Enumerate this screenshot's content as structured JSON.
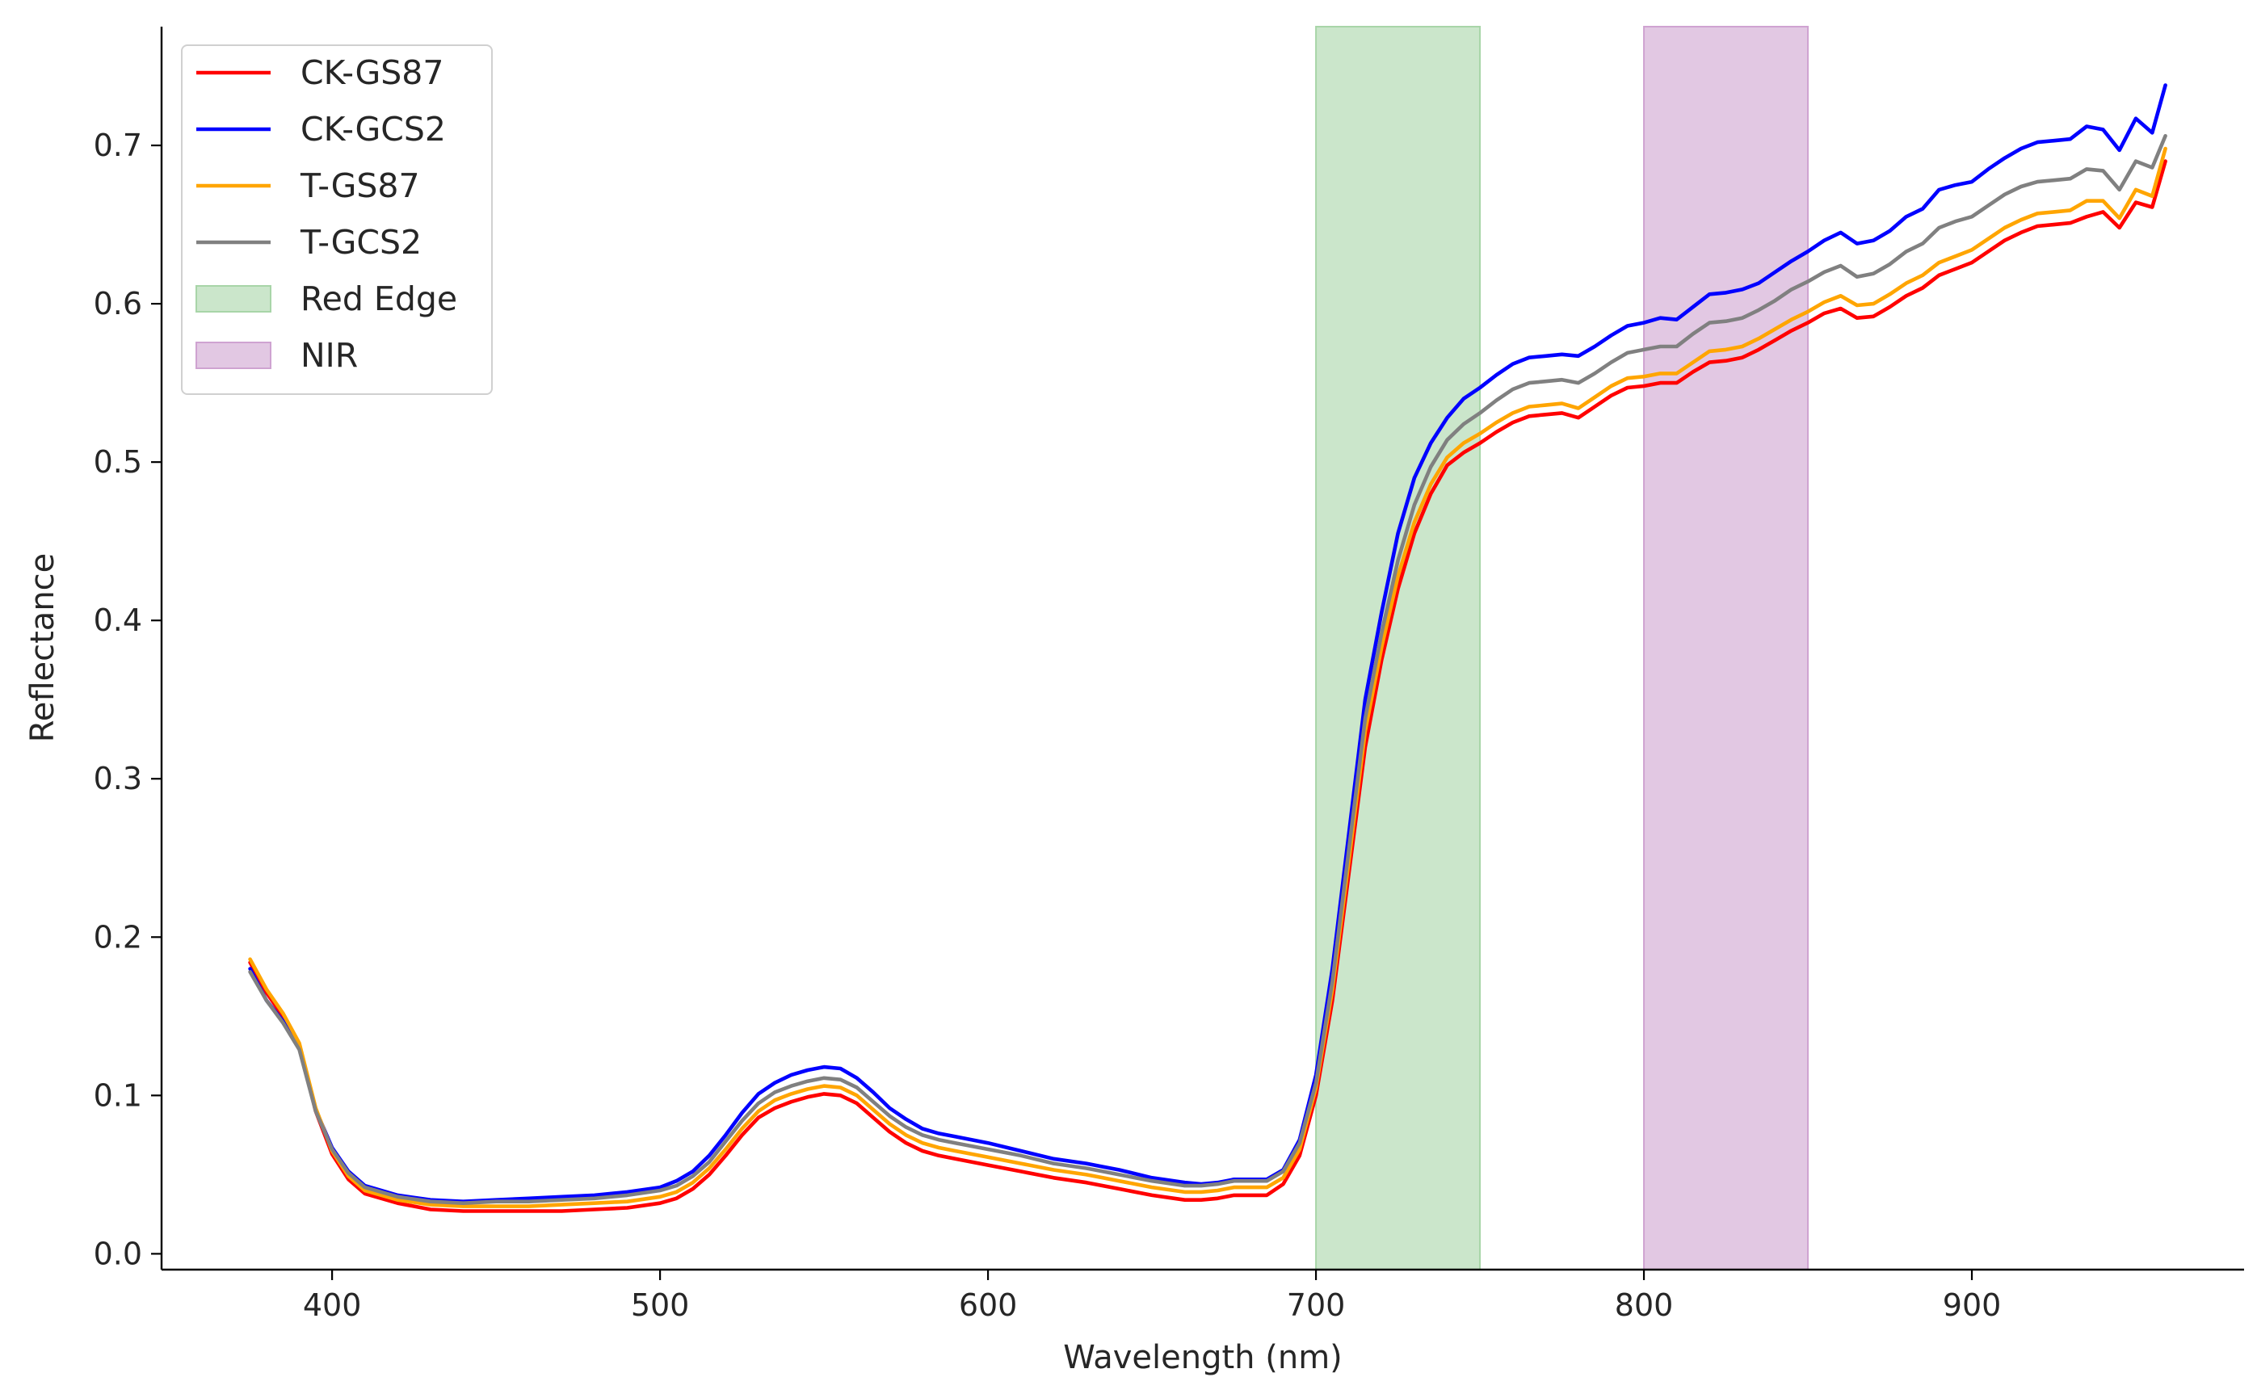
{
  "chart_data": {
    "type": "line",
    "title": "",
    "xlabel": "Wavelength (nm)",
    "ylabel": "Reflectance",
    "xlim": [
      348,
      983
    ],
    "ylim": [
      -0.01,
      0.775
    ],
    "xticks": [
      "400",
      "500",
      "600",
      "700",
      "800",
      "900"
    ],
    "yticks": [
      "0.0",
      "0.1",
      "0.2",
      "0.3",
      "0.4",
      "0.5",
      "0.6",
      "0.7"
    ],
    "grid": false,
    "legend_position": "top-left",
    "bands": [
      {
        "name": "Red Edge",
        "x_start": 700,
        "x_end": 750,
        "color": "#a8d5a8"
      },
      {
        "name": "NIR",
        "x_start": 800,
        "x_end": 850,
        "color": "#cfa3d1"
      }
    ],
    "x": [
      375,
      380,
      385,
      390,
      395,
      400,
      405,
      410,
      420,
      430,
      440,
      450,
      460,
      470,
      480,
      490,
      500,
      505,
      510,
      515,
      520,
      525,
      530,
      535,
      540,
      545,
      550,
      555,
      560,
      565,
      570,
      575,
      580,
      585,
      590,
      600,
      610,
      620,
      630,
      635,
      640,
      650,
      660,
      665,
      670,
      675,
      680,
      685,
      690,
      695,
      700,
      705,
      710,
      715,
      720,
      725,
      730,
      735,
      740,
      745,
      750,
      755,
      760,
      765,
      770,
      775,
      780,
      785,
      790,
      795,
      800,
      805,
      810,
      815,
      820,
      825,
      830,
      835,
      840,
      845,
      850,
      855,
      860,
      865,
      870,
      875,
      880,
      885,
      890,
      895,
      900,
      905,
      910,
      915,
      920,
      925,
      930,
      935,
      940,
      945,
      950,
      955,
      959
    ],
    "series": [
      {
        "name": "CK-GS87",
        "color": "#ff0000",
        "values": [
          0.184,
          0.165,
          0.15,
          0.132,
          0.09,
          0.063,
          0.047,
          0.038,
          0.032,
          0.028,
          0.027,
          0.027,
          0.027,
          0.027,
          0.028,
          0.029,
          0.032,
          0.035,
          0.041,
          0.05,
          0.062,
          0.075,
          0.086,
          0.092,
          0.096,
          0.099,
          0.101,
          0.1,
          0.095,
          0.086,
          0.077,
          0.07,
          0.065,
          0.062,
          0.06,
          0.056,
          0.052,
          0.048,
          0.045,
          0.043,
          0.041,
          0.037,
          0.034,
          0.034,
          0.035,
          0.037,
          0.037,
          0.037,
          0.044,
          0.062,
          0.1,
          0.16,
          0.24,
          0.32,
          0.375,
          0.42,
          0.455,
          0.48,
          0.498,
          0.506,
          0.512,
          0.519,
          0.525,
          0.529,
          0.53,
          0.531,
          0.528,
          0.535,
          0.542,
          0.547,
          0.548,
          0.55,
          0.55,
          0.557,
          0.563,
          0.564,
          0.566,
          0.571,
          0.577,
          0.583,
          0.588,
          0.594,
          0.597,
          0.591,
          0.592,
          0.598,
          0.605,
          0.61,
          0.618,
          0.622,
          0.626,
          0.633,
          0.64,
          0.645,
          0.649,
          0.65,
          0.651,
          0.655,
          0.658,
          0.648,
          0.664,
          0.661,
          0.69
        ]
      },
      {
        "name": "CK-GCS2",
        "color": "#0000ff",
        "values": [
          0.18,
          0.16,
          0.147,
          0.13,
          0.091,
          0.067,
          0.052,
          0.043,
          0.037,
          0.034,
          0.033,
          0.034,
          0.035,
          0.036,
          0.037,
          0.039,
          0.042,
          0.046,
          0.052,
          0.062,
          0.075,
          0.089,
          0.101,
          0.108,
          0.113,
          0.116,
          0.118,
          0.117,
          0.111,
          0.102,
          0.092,
          0.085,
          0.079,
          0.076,
          0.074,
          0.07,
          0.065,
          0.06,
          0.057,
          0.055,
          0.053,
          0.048,
          0.045,
          0.044,
          0.045,
          0.047,
          0.047,
          0.047,
          0.053,
          0.072,
          0.113,
          0.18,
          0.265,
          0.35,
          0.405,
          0.455,
          0.49,
          0.512,
          0.528,
          0.54,
          0.547,
          0.555,
          0.562,
          0.566,
          0.567,
          0.568,
          0.567,
          0.573,
          0.58,
          0.586,
          0.588,
          0.591,
          0.59,
          0.598,
          0.606,
          0.607,
          0.609,
          0.613,
          0.62,
          0.627,
          0.633,
          0.64,
          0.645,
          0.638,
          0.64,
          0.646,
          0.655,
          0.66,
          0.672,
          0.675,
          0.677,
          0.685,
          0.692,
          0.698,
          0.702,
          0.703,
          0.704,
          0.712,
          0.71,
          0.697,
          0.717,
          0.708,
          0.738
        ]
      },
      {
        "name": "T-GS87",
        "color": "#ffa500",
        "values": [
          0.186,
          0.167,
          0.152,
          0.133,
          0.092,
          0.065,
          0.049,
          0.04,
          0.034,
          0.031,
          0.03,
          0.03,
          0.03,
          0.031,
          0.032,
          0.033,
          0.036,
          0.039,
          0.045,
          0.054,
          0.066,
          0.079,
          0.09,
          0.097,
          0.101,
          0.104,
          0.106,
          0.105,
          0.1,
          0.091,
          0.082,
          0.075,
          0.07,
          0.067,
          0.065,
          0.061,
          0.057,
          0.053,
          0.05,
          0.048,
          0.046,
          0.042,
          0.039,
          0.039,
          0.04,
          0.042,
          0.042,
          0.042,
          0.048,
          0.066,
          0.105,
          0.167,
          0.248,
          0.33,
          0.383,
          0.428,
          0.462,
          0.486,
          0.503,
          0.512,
          0.518,
          0.525,
          0.531,
          0.535,
          0.536,
          0.537,
          0.534,
          0.541,
          0.548,
          0.553,
          0.554,
          0.556,
          0.556,
          0.563,
          0.57,
          0.571,
          0.573,
          0.578,
          0.584,
          0.59,
          0.595,
          0.601,
          0.605,
          0.599,
          0.6,
          0.606,
          0.613,
          0.618,
          0.626,
          0.63,
          0.634,
          0.641,
          0.648,
          0.653,
          0.657,
          0.658,
          0.659,
          0.665,
          0.665,
          0.654,
          0.672,
          0.668,
          0.698
        ]
      },
      {
        "name": "T-GCS2",
        "color": "#808080",
        "values": [
          0.178,
          0.16,
          0.146,
          0.129,
          0.09,
          0.066,
          0.051,
          0.042,
          0.036,
          0.033,
          0.032,
          0.033,
          0.033,
          0.034,
          0.035,
          0.037,
          0.04,
          0.043,
          0.049,
          0.058,
          0.071,
          0.084,
          0.095,
          0.102,
          0.106,
          0.109,
          0.111,
          0.11,
          0.105,
          0.096,
          0.087,
          0.08,
          0.075,
          0.072,
          0.07,
          0.066,
          0.062,
          0.057,
          0.054,
          0.052,
          0.05,
          0.046,
          0.043,
          0.043,
          0.044,
          0.046,
          0.046,
          0.046,
          0.052,
          0.07,
          0.108,
          0.172,
          0.255,
          0.338,
          0.392,
          0.438,
          0.473,
          0.497,
          0.514,
          0.524,
          0.531,
          0.539,
          0.546,
          0.55,
          0.551,
          0.552,
          0.55,
          0.556,
          0.563,
          0.569,
          0.571,
          0.573,
          0.573,
          0.581,
          0.588,
          0.589,
          0.591,
          0.596,
          0.602,
          0.609,
          0.614,
          0.62,
          0.624,
          0.617,
          0.619,
          0.625,
          0.633,
          0.638,
          0.648,
          0.652,
          0.655,
          0.662,
          0.669,
          0.674,
          0.677,
          0.678,
          0.679,
          0.685,
          0.684,
          0.672,
          0.69,
          0.686,
          0.706
        ]
      }
    ]
  }
}
